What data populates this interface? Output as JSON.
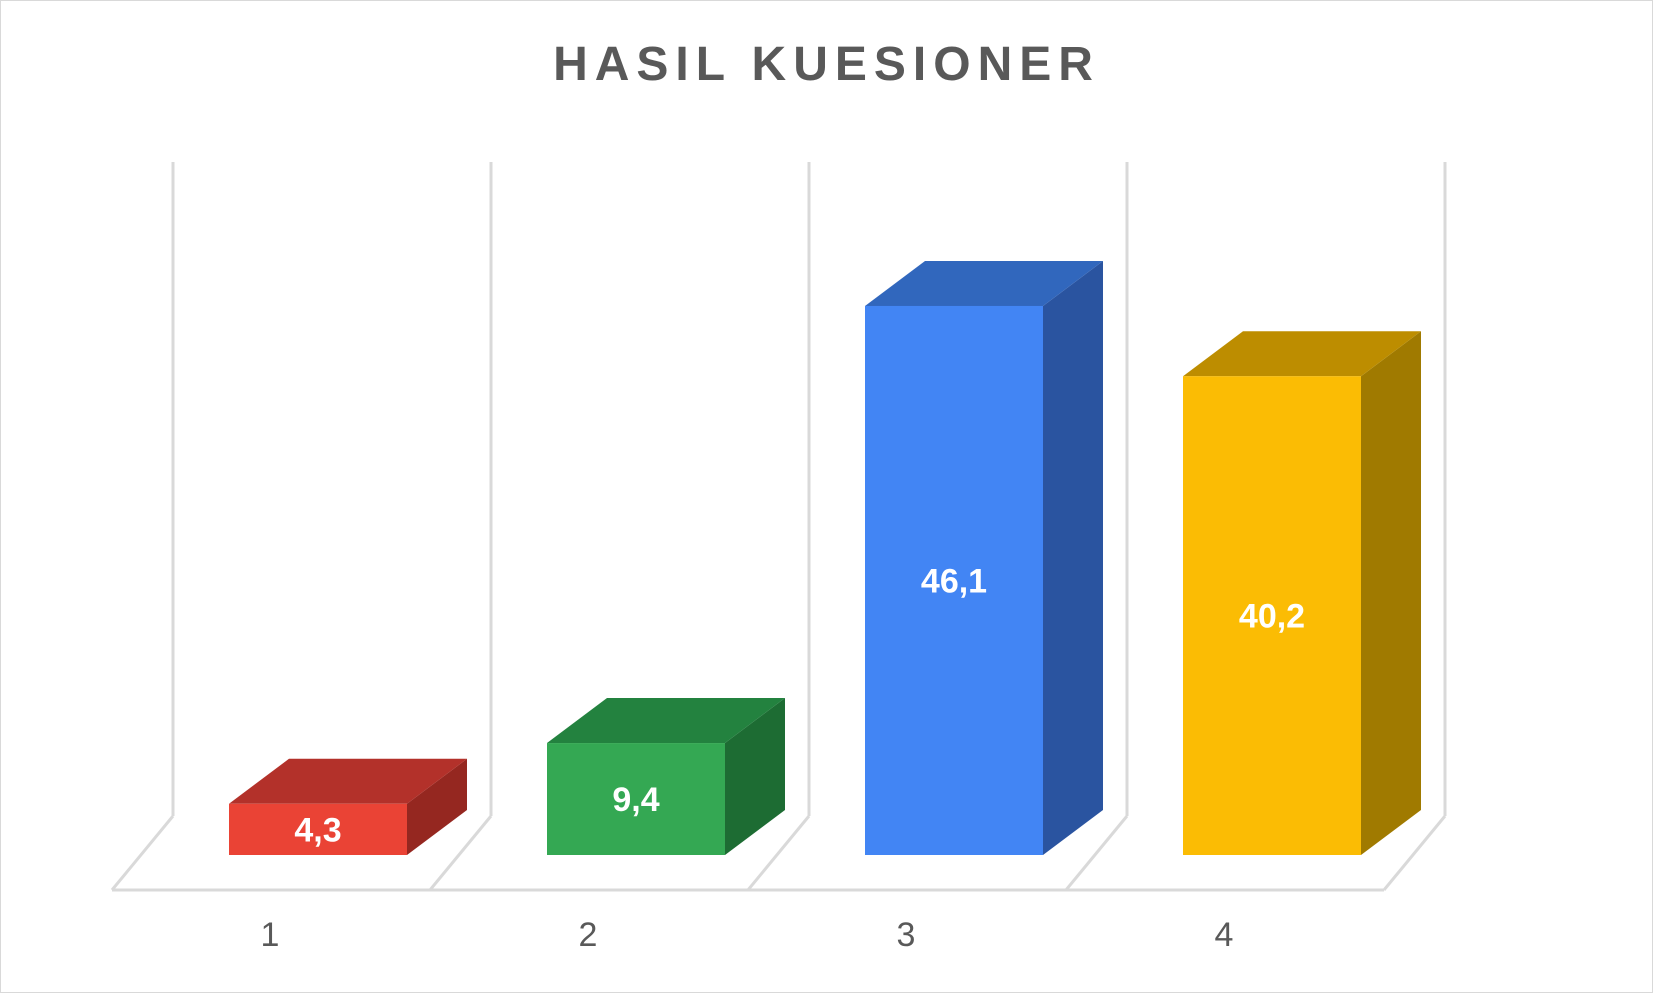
{
  "chart_data": {
    "type": "bar",
    "title": "HASIL KUESIONER",
    "categories": [
      "1",
      "2",
      "3",
      "4"
    ],
    "values": [
      4.3,
      9.4,
      46.1,
      40.2
    ],
    "value_labels": [
      "4,3",
      "9,4",
      "46,1",
      "40,2"
    ],
    "colors": {
      "front": [
        "#EA4335",
        "#34A853",
        "#4285F4",
        "#FBBC04"
      ],
      "top": [
        "#B3312A",
        "#23823F",
        "#3167BD",
        "#BD8D00"
      ],
      "side": [
        "#952720",
        "#1D6C33",
        "#2A54A0",
        "#A07A00"
      ]
    },
    "ylim": [
      0,
      50
    ],
    "grid": true,
    "legend": "none",
    "style": "3d-column"
  }
}
